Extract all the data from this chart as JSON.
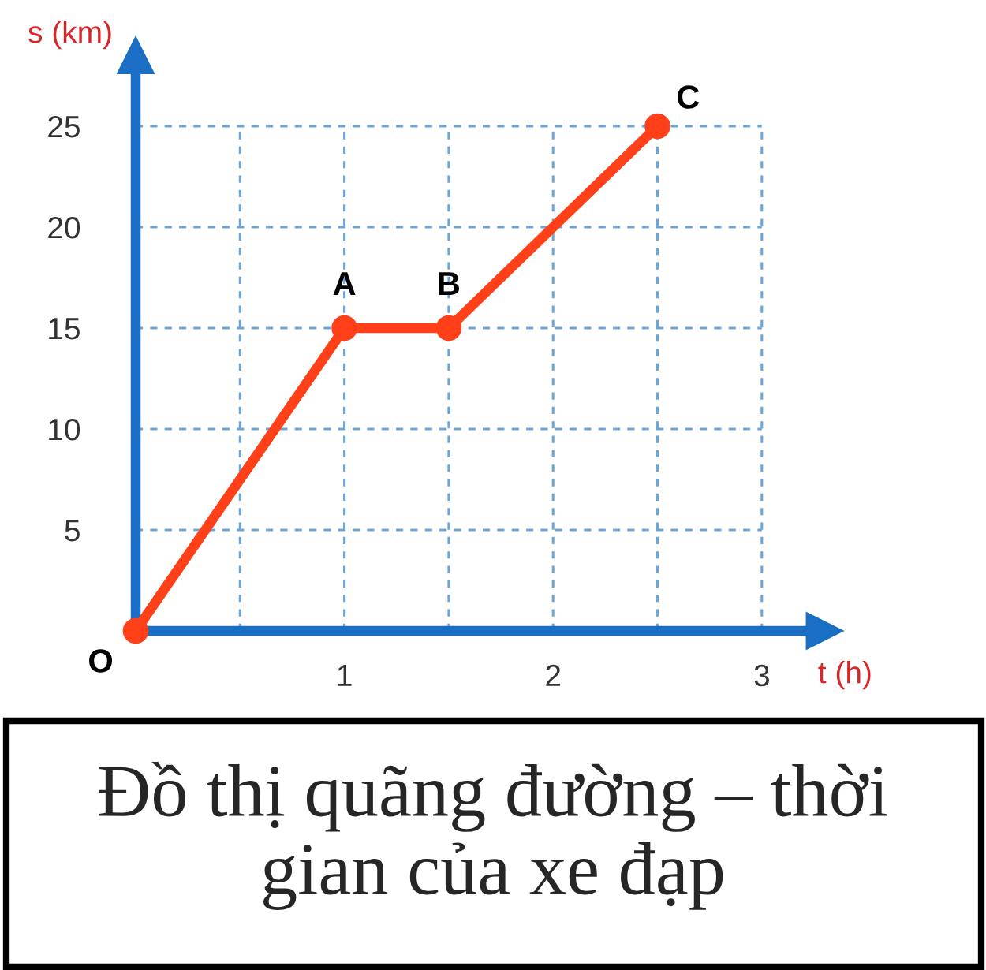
{
  "chart_data": {
    "type": "line",
    "title": "Đồ thị quãng đường – thời gian của xe đạp",
    "xlabel": "t (h)",
    "ylabel": "s (km)",
    "x": [
      0,
      1,
      1.5,
      2.5
    ],
    "series": [
      {
        "color": "#ff4019",
        "values": [
          0,
          15,
          15,
          25
        ]
      }
    ],
    "xlim": [
      0,
      3.3
    ],
    "ylim": [
      0,
      28.5
    ],
    "xticks": [
      {
        "value": 0.5,
        "label": null
      },
      1,
      {
        "value": 1.5,
        "label": null
      },
      2,
      {
        "value": 2.5,
        "label": null
      },
      3
    ],
    "yticks": [
      5,
      10,
      15,
      20,
      25
    ],
    "grid": true,
    "marker": "circle",
    "line_style": "solid",
    "annotations": [
      {
        "text": "O",
        "x": 0,
        "y": 0
      },
      {
        "text": "A",
        "x": 1,
        "y": 15
      },
      {
        "text": "B",
        "x": 1.5,
        "y": 15
      },
      {
        "text": "C",
        "x": 2.5,
        "y": 25
      }
    ]
  }
}
